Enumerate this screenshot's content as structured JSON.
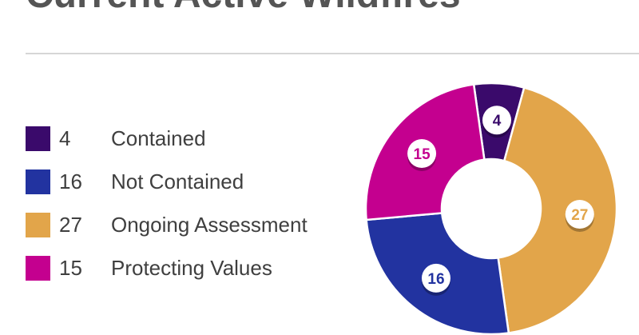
{
  "title": "Current Active Wildfires",
  "legend": [
    {
      "value": "4",
      "label": "Contained",
      "color": "#3a0a6b"
    },
    {
      "value": "16",
      "label": "Not Contained",
      "color": "#2233a0"
    },
    {
      "value": "27",
      "label": "Ongoing Assessment",
      "color": "#e2a54a"
    },
    {
      "value": "15",
      "label": "Protecting Values",
      "color": "#c4008f"
    }
  ],
  "chart_data": {
    "type": "pie",
    "categories": [
      "Contained",
      "Ongoing Assessment",
      "Not Contained",
      "Protecting Values"
    ],
    "values": [
      4,
      27,
      16,
      15
    ],
    "colors": [
      "#3a0a6b",
      "#e2a54a",
      "#2233a0",
      "#c4008f"
    ],
    "data_labels": [
      "4",
      "27",
      "16",
      "15"
    ],
    "donut": true,
    "legend_position": "left"
  }
}
